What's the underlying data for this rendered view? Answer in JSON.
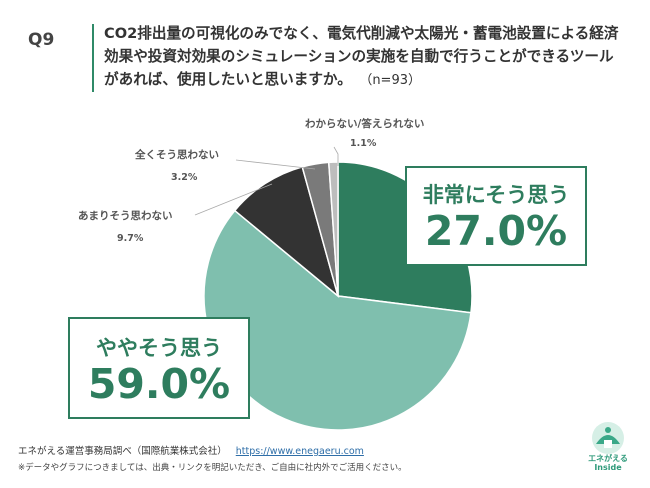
{
  "question": {
    "number": "Q9",
    "text": "CO2排出量の可視化のみでなく、電気代削減や太陽光・蓄電池設置による経済効果や投資対効果のシミュレーションの実施を自動で行うことができるツールがあれば、使用したいと思いますか。",
    "n": "（n=93）"
  },
  "chart_data": {
    "type": "pie",
    "title": "",
    "slices": [
      {
        "label": "非常にそう思う",
        "value": 27.0,
        "display": "27.0%",
        "color": "#2e7d5e"
      },
      {
        "label": "ややそう思う",
        "value": 59.0,
        "display": "59.0%",
        "color": "#7fbfae"
      },
      {
        "label": "あまりそう思わない",
        "value": 9.7,
        "display": "9.7%",
        "color": "#333333"
      },
      {
        "label": "全くそう思わない",
        "value": 3.2,
        "display": "3.2%",
        "color": "#7a7a7a"
      },
      {
        "label": "わからない/答えられない",
        "value": 1.1,
        "display": "1.1%",
        "color": "#bdbdbd"
      }
    ],
    "start_angle_deg": 0,
    "direction": "clockwise"
  },
  "footer": {
    "source": "エネがえる運営事務局調べ（国際航業株式会社）",
    "link": "https://www.enegaeru.com",
    "note": "※データやグラフにつきましては、出典・リンクを明記いただき、ご自由に社内外でご活用ください。"
  },
  "logo": {
    "name": "エネがえる",
    "sub": "Inside"
  }
}
